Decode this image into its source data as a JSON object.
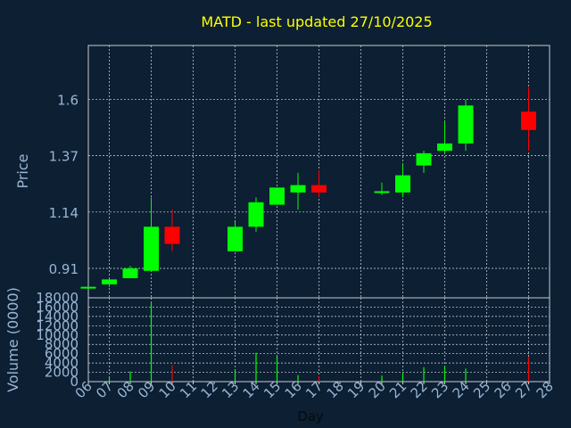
{
  "chart_data": [
    {
      "type": "candlestick",
      "title": "MATD - last updated 27/10/2025",
      "ylabel": "Price",
      "xlabel": "Day",
      "up_color": "#00ff00",
      "down_color": "#ff0000",
      "grid": true,
      "ylim": [
        0.79,
        1.82
      ],
      "yticks": [
        "0.91",
        "1.14",
        "1.37",
        "1.6"
      ],
      "ytick_values": [
        0.91,
        1.14,
        1.37,
        1.6
      ],
      "xlim": [
        6,
        28
      ],
      "xticks": [
        "06",
        "07",
        "08",
        "09",
        "10",
        "11",
        "12",
        "13",
        "14",
        "15",
        "16",
        "17",
        "18",
        "19",
        "20",
        "21",
        "22",
        "23",
        "24",
        "25",
        "26",
        "27",
        "28"
      ],
      "candles": [
        {
          "day": 6,
          "open": 0.83,
          "close": 0.835,
          "high": 0.835,
          "low": 0.83
        },
        {
          "day": 7,
          "open": 0.845,
          "close": 0.865,
          "high": 0.87,
          "low": 0.835
        },
        {
          "day": 8,
          "open": 0.87,
          "close": 0.91,
          "high": 0.92,
          "low": 0.87
        },
        {
          "day": 9,
          "open": 0.9,
          "close": 1.08,
          "high": 1.2,
          "low": 0.9
        },
        {
          "day": 10,
          "open": 1.08,
          "close": 1.01,
          "high": 1.15,
          "low": 0.98
        },
        {
          "day": 13,
          "open": 0.98,
          "close": 1.08,
          "high": 1.1,
          "low": 0.98
        },
        {
          "day": 14,
          "open": 1.08,
          "close": 1.18,
          "high": 1.2,
          "low": 1.06
        },
        {
          "day": 15,
          "open": 1.17,
          "close": 1.24,
          "high": 1.24,
          "low": 1.17
        },
        {
          "day": 16,
          "open": 1.22,
          "close": 1.25,
          "high": 1.3,
          "low": 1.15
        },
        {
          "day": 17,
          "open": 1.25,
          "close": 1.22,
          "high": 1.31,
          "low": 1.2
        },
        {
          "day": 20,
          "open": 1.22,
          "close": 1.225,
          "high": 1.26,
          "low": 1.21
        },
        {
          "day": 21,
          "open": 1.22,
          "close": 1.29,
          "high": 1.34,
          "low": 1.2
        },
        {
          "day": 22,
          "open": 1.33,
          "close": 1.38,
          "high": 1.39,
          "low": 1.3
        },
        {
          "day": 23,
          "open": 1.39,
          "close": 1.42,
          "high": 1.51,
          "low": 1.38
        },
        {
          "day": 24,
          "open": 1.42,
          "close": 1.575,
          "high": 1.6,
          "low": 1.39
        },
        {
          "day": 27,
          "open": 1.55,
          "close": 1.475,
          "high": 1.65,
          "low": 1.39
        }
      ]
    },
    {
      "type": "bar",
      "ylabel": "Volume (0000)",
      "ylim": [
        0,
        18000
      ],
      "yticks": [
        "0",
        "2000",
        "4000",
        "6000",
        "8000",
        "10000",
        "12000",
        "14000",
        "16000",
        "18000"
      ],
      "ytick_values": [
        0,
        2000,
        4000,
        6000,
        8000,
        10000,
        12000,
        14000,
        16000,
        18000
      ],
      "xlim": [
        6,
        28
      ],
      "bars": [
        {
          "day": 6,
          "value": 0,
          "direction": "up"
        },
        {
          "day": 7,
          "value": 900,
          "direction": "up"
        },
        {
          "day": 8,
          "value": 2200,
          "direction": "up"
        },
        {
          "day": 9,
          "value": 17000,
          "direction": "up"
        },
        {
          "day": 10,
          "value": 3500,
          "direction": "down"
        },
        {
          "day": 13,
          "value": 2400,
          "direction": "up"
        },
        {
          "day": 14,
          "value": 6200,
          "direction": "up"
        },
        {
          "day": 15,
          "value": 5400,
          "direction": "up"
        },
        {
          "day": 16,
          "value": 1400,
          "direction": "up"
        },
        {
          "day": 17,
          "value": 1200,
          "direction": "down"
        },
        {
          "day": 20,
          "value": 1300,
          "direction": "up"
        },
        {
          "day": 21,
          "value": 1800,
          "direction": "up"
        },
        {
          "day": 22,
          "value": 3100,
          "direction": "up"
        },
        {
          "day": 23,
          "value": 3400,
          "direction": "up"
        },
        {
          "day": 24,
          "value": 2800,
          "direction": "up"
        },
        {
          "day": 27,
          "value": 5300,
          "direction": "down"
        }
      ]
    }
  ]
}
